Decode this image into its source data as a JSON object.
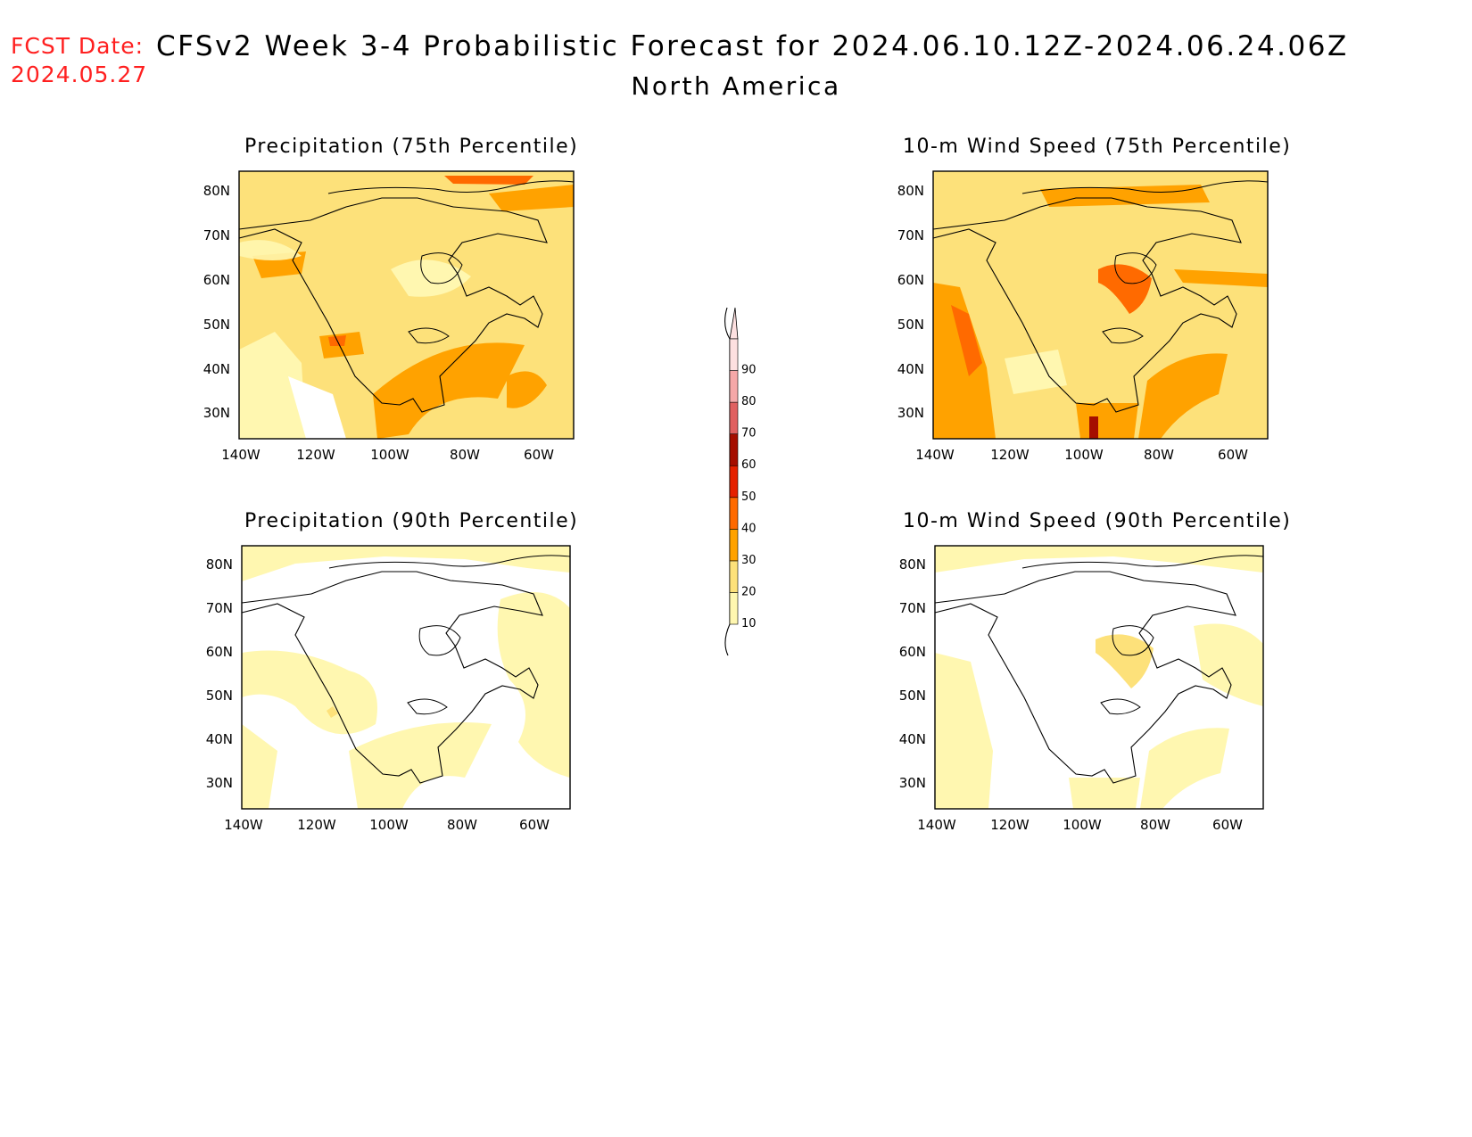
{
  "header": {
    "fcst_label": "FCST Date:",
    "fcst_date": "2024.05.27",
    "title": "CFSv2 Week 3-4 Probabilistic Forecast for 2024.06.10.12Z-2024.06.24.06Z",
    "region": "North America"
  },
  "panels": [
    {
      "title": "Precipitation (75th Percentile)",
      "x_ticks": [
        "140W",
        "120W",
        "100W",
        "80W",
        "60W"
      ],
      "y_ticks": [
        "80N",
        "70N",
        "60N",
        "50N",
        "40N",
        "30N"
      ]
    },
    {
      "title": "10-m Wind Speed (75th Percentile)",
      "x_ticks": [
        "140W",
        "120W",
        "100W",
        "80W",
        "60W"
      ],
      "y_ticks": [
        "80N",
        "70N",
        "60N",
        "50N",
        "40N",
        "30N"
      ]
    },
    {
      "title": "Precipitation (90th Percentile)",
      "x_ticks": [
        "140W",
        "120W",
        "100W",
        "80W",
        "60W"
      ],
      "y_ticks": [
        "80N",
        "70N",
        "60N",
        "50N",
        "40N",
        "30N"
      ]
    },
    {
      "title": "10-m Wind Speed (90th Percentile)",
      "x_ticks": [
        "140W",
        "120W",
        "100W",
        "80W",
        "60W"
      ],
      "y_ticks": [
        "80N",
        "70N",
        "60N",
        "50N",
        "40N",
        "30N"
      ]
    }
  ],
  "colorbar": {
    "levels": [
      "10",
      "20",
      "30",
      "40",
      "50",
      "60",
      "70",
      "80",
      "90"
    ],
    "colors": [
      "#fff7b0",
      "#fde17a",
      "#ffa200",
      "#ff6a00",
      "#e52100",
      "#a50e00",
      "#e06060",
      "#f5a8a8",
      "#fde0e0"
    ]
  },
  "legend_colors": {
    "bin_10_20": "#fff7b0",
    "bin_20_30": "#fde17a",
    "bin_30_40": "#ffa200",
    "bin_40_50": "#ff6a00",
    "coast": "#000000"
  }
}
